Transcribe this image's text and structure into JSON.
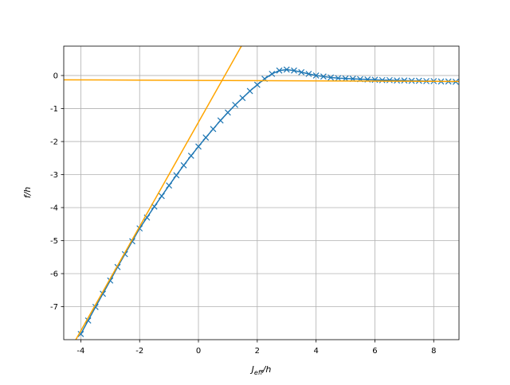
{
  "chart_data": {
    "type": "line",
    "xlabel": [
      "J",
      "eff",
      "/h"
    ],
    "ylabel": "f/h",
    "xlim": [
      -4.58,
      8.86
    ],
    "ylim": [
      -8.0,
      0.89
    ],
    "xticks": [
      -4,
      -2,
      0,
      2,
      4,
      6,
      8
    ],
    "yticks": [
      -7,
      -6,
      -5,
      -4,
      -3,
      -2,
      -1,
      0
    ],
    "grid": true,
    "series": [
      {
        "color": "#1f77b4",
        "marker": "x",
        "x": [
          -4,
          -3.75,
          -3.5,
          -3.25,
          -3,
          -2.75,
          -2.5,
          -2.25,
          -2,
          -1.75,
          -1.5,
          -1.25,
          -1,
          -0.75,
          -0.5,
          -0.25,
          0,
          0.25,
          0.5,
          0.75,
          1,
          1.25,
          1.5,
          1.75,
          2,
          2.25,
          2.5,
          2.75,
          3,
          3.25,
          3.5,
          3.75,
          4,
          4.25,
          4.5,
          4.75,
          5,
          5.25,
          5.5,
          5.75,
          6,
          6.25,
          6.5,
          6.75,
          7,
          7.25,
          7.5,
          7.75,
          8,
          8.25,
          8.5,
          8.75
        ],
        "values": [
          -7.83,
          -7.42,
          -7.01,
          -6.61,
          -6.21,
          -5.8,
          -5.41,
          -5.02,
          -4.63,
          -4.3,
          -3.97,
          -3.65,
          -3.33,
          -3.02,
          -2.72,
          -2.43,
          -2.15,
          -1.88,
          -1.62,
          -1.36,
          -1.12,
          -0.89,
          -0.68,
          -0.47,
          -0.28,
          -0.1,
          0.05,
          0.15,
          0.18,
          0.15,
          0.1,
          0.05,
          0,
          -0.03,
          -0.06,
          -0.08,
          -0.09,
          -0.1,
          -0.11,
          -0.12,
          -0.13,
          -0.14,
          -0.14,
          -0.15,
          -0.15,
          -0.16,
          -0.16,
          -0.17,
          -0.17,
          -0.18,
          -0.18,
          -0.19
        ]
      },
      {
        "color": "#ffa500",
        "x": [
          -4.58,
          8.86
        ],
        "values": [
          -0.13,
          -0.18
        ]
      },
      {
        "color": "#ffa500",
        "x": [
          -4.17,
          1.46
        ],
        "values": [
          -8.0,
          0.89
        ]
      }
    ]
  }
}
